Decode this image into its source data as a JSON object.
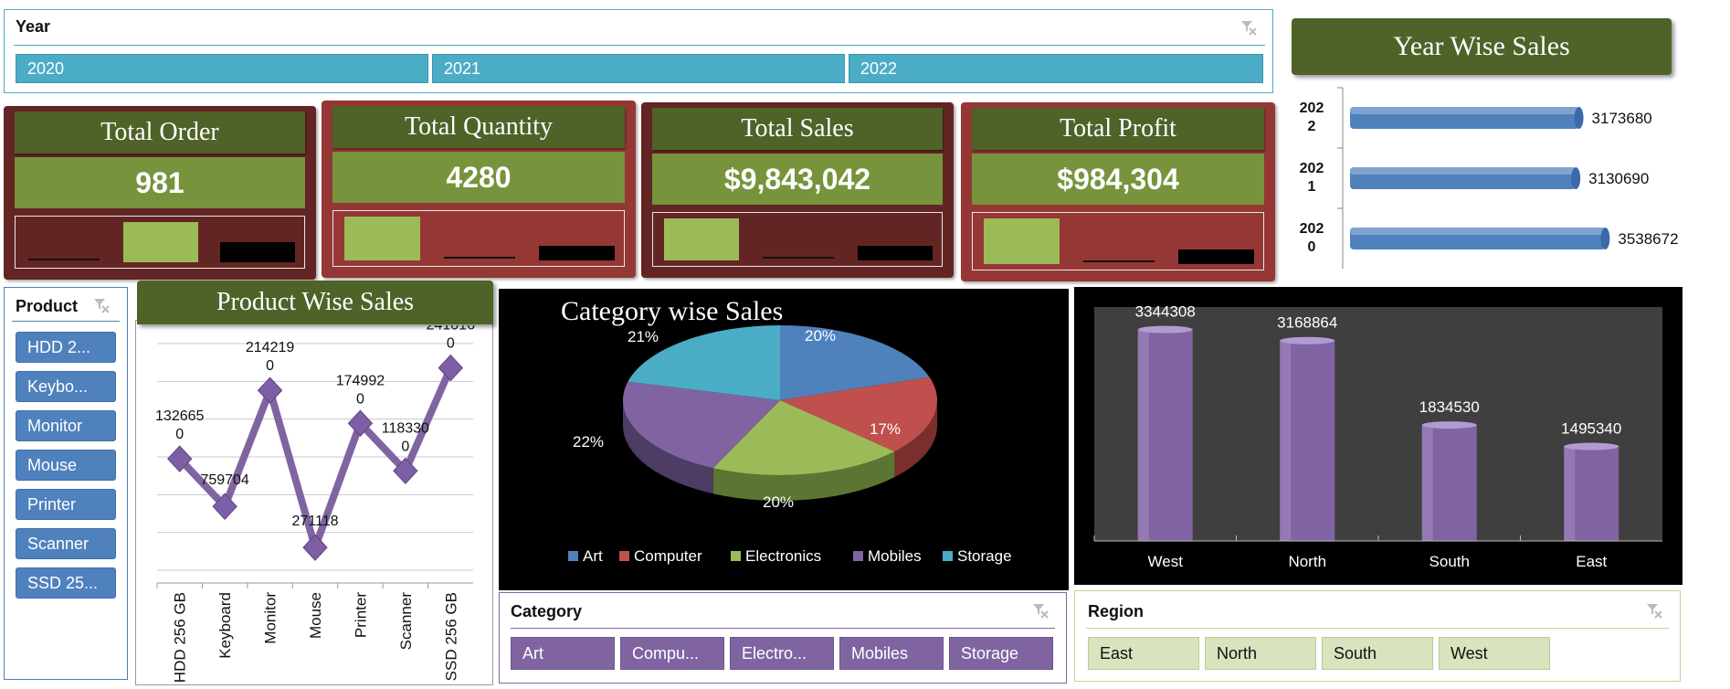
{
  "year_slicer": {
    "title": "Year",
    "items": [
      "2020",
      "2021",
      "2022"
    ]
  },
  "kpis": [
    {
      "title": "Total Order",
      "value": "981",
      "bg": "#632523"
    },
    {
      "title": "Total Quantity",
      "value": "4280",
      "bg": "#953735"
    },
    {
      "title": "Total Sales",
      "value": "$9,843,042",
      "bg": "#632523"
    },
    {
      "title": "Total Profit",
      "value": "$984,304",
      "bg": "#953735"
    }
  ],
  "year_wise_sales": {
    "title": "Year Wise Sales",
    "chart_data": {
      "type": "bar",
      "orientation": "horizontal",
      "categories": [
        "2022",
        "2021",
        "2020"
      ],
      "category_labels": [
        [
          "202",
          "2"
        ],
        [
          "202",
          "1"
        ],
        [
          "202",
          "0"
        ]
      ],
      "values": [
        3173680,
        3130690,
        3538672
      ],
      "data_labels": [
        "3173680",
        "3130690",
        "3538672"
      ],
      "color": "#4f81bd"
    }
  },
  "product_slicer": {
    "title": "Product",
    "items": [
      "HDD 2...",
      "Keybo...",
      "Monitor",
      "Mouse",
      "Printer",
      "Scanner",
      "SSD 25..."
    ]
  },
  "product_wise_sales": {
    "title": "Product Wise Sales",
    "chart_data": {
      "type": "line",
      "categories": [
        "HDD 256 GB",
        "Keyboard",
        "Monitor",
        "Mouse",
        "Printer",
        "Scanner",
        "SSD 256 GB"
      ],
      "values": [
        1326650,
        759704,
        2142190,
        271118,
        1749920,
        1183300,
        2410160
      ],
      "data_labels": [
        [
          "132665",
          "0"
        ],
        [
          "759704"
        ],
        [
          "214219",
          "0"
        ],
        [
          "271118"
        ],
        [
          "174992",
          "0"
        ],
        [
          "118330",
          "0"
        ],
        [
          "241016",
          "0"
        ]
      ],
      "ylim": [
        0,
        2700000
      ],
      "grid": true,
      "color": "#8064a2"
    }
  },
  "category_wise_sales": {
    "title": "Category wise Sales",
    "chart_data": {
      "type": "pie",
      "categories": [
        "Art",
        "Computer",
        "Electronics",
        "Mobiles",
        "Storage"
      ],
      "values": [
        20,
        17,
        20,
        22,
        21
      ],
      "labels": [
        "20%",
        "17%",
        "20%",
        "22%",
        "21%"
      ],
      "colors": [
        "#4f81bd",
        "#c0504d",
        "#9bbb59",
        "#8064a2",
        "#4bacc6"
      ],
      "legend": "bottom"
    }
  },
  "region_sales": {
    "chart_data": {
      "type": "bar",
      "categories": [
        "West",
        "North",
        "South",
        "East"
      ],
      "values": [
        3344308,
        3168864,
        1834530,
        1495340
      ],
      "data_labels": [
        "3344308",
        "3168864",
        "1834530",
        "1495340"
      ],
      "ylim": [
        0,
        3700000
      ],
      "color": "#8064a2"
    }
  },
  "category_slicer": {
    "title": "Category",
    "items": [
      "Art",
      "Compu...",
      "Electro...",
      "Mobiles",
      "Storage"
    ]
  },
  "region_slicer": {
    "title": "Region",
    "items": [
      "East",
      "North",
      "South",
      "West"
    ]
  }
}
